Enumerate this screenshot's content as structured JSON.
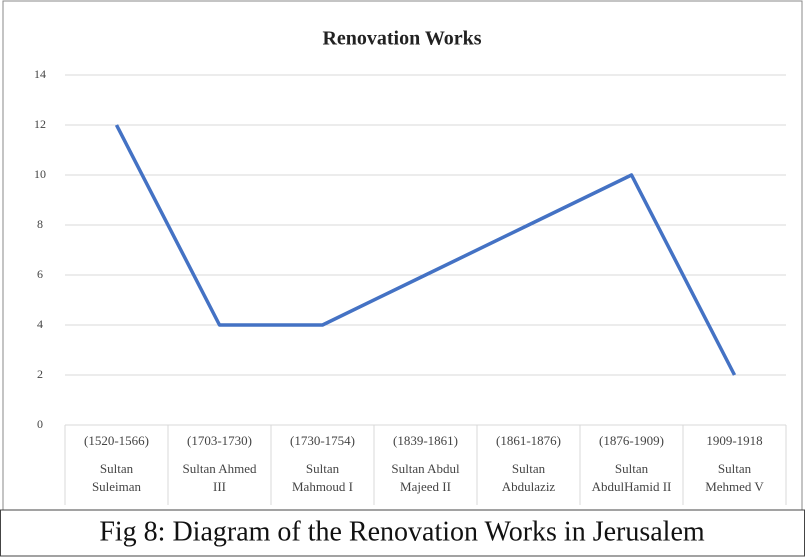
{
  "chart_data": {
    "type": "line",
    "title": "Renovation Works",
    "categories": [
      [
        "(1520-1566)",
        "Sultan",
        "Suleiman"
      ],
      [
        "(1703-1730)",
        "Sultan Ahmed",
        "III"
      ],
      [
        "(1730-1754)",
        "Sultan",
        "Mahmoud I"
      ],
      [
        "(1839-1861)",
        "Sultan Abdul",
        "Majeed II"
      ],
      [
        "(1861-1876)",
        "Sultan",
        "Abdulaziz"
      ],
      [
        "(1876-1909)",
        "Sultan",
        "AbdulHamid II"
      ],
      [
        "1909-1918",
        "Sultan",
        "Mehmed V"
      ]
    ],
    "values": [
      12,
      4,
      4,
      6,
      8,
      10,
      2
    ],
    "color": "#4472c4",
    "ylim": [
      0,
      14
    ],
    "yticks": [
      0,
      2,
      4,
      6,
      8,
      10,
      12,
      14
    ],
    "grid": true
  },
  "caption": "Fig 8: Diagram of the Renovation Works in Jerusalem"
}
